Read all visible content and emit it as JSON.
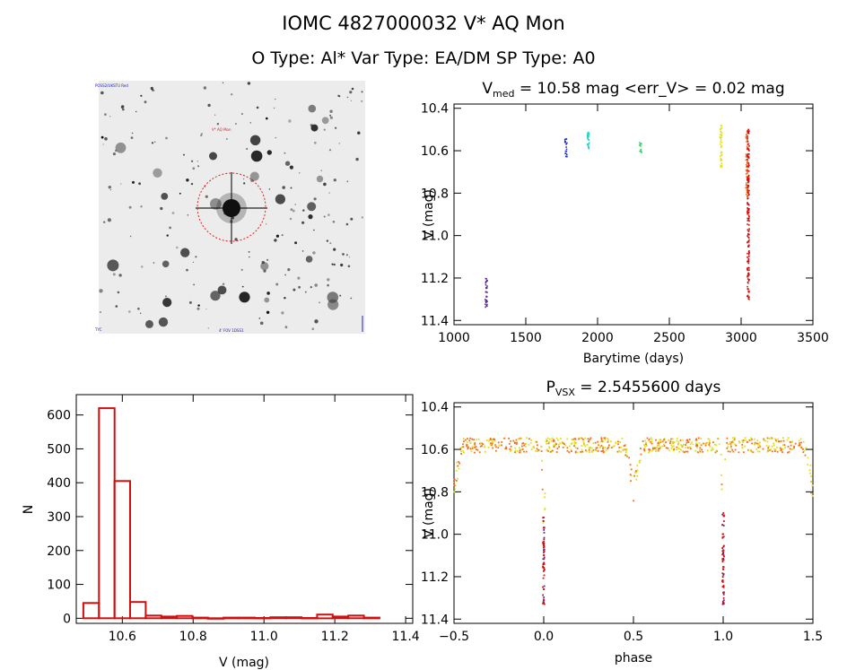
{
  "header": {
    "line1": "IOMC 4827000032    V* AQ Mon",
    "line2": "O Type: Al*  Var Type: EA/DM  SP Type: A0"
  },
  "finder": {
    "labels": {
      "top_left": "POSS2/UKSTU Red",
      "target": "V* AQ Mon",
      "bottom_left": "TYC",
      "bottom_center": "4' FOV 1DSS1"
    },
    "ring_color": "#e02020"
  },
  "chart_data": [
    {
      "id": "lightcurve",
      "type": "scatter",
      "title_parts": [
        "V",
        "med",
        " = 10.58 mag <err_V> = 0.02 mag"
      ],
      "xlabel": "Barytime (days)",
      "ylabel": "V (mag)",
      "xlim": [
        1000,
        3500
      ],
      "ylim": [
        11.42,
        10.38
      ],
      "xticks": [
        1000,
        1500,
        2000,
        2500,
        3000,
        3500
      ],
      "xtick_labels": [
        "1000",
        "1500",
        "2000",
        "2500",
        "3000",
        "3500"
      ],
      "yticks": [
        10.4,
        10.6,
        10.8,
        11.0,
        11.2,
        11.4
      ],
      "ytick_labels": [
        "10.4",
        "10.6",
        "10.8",
        "11.0",
        "11.2",
        "11.4"
      ],
      "grid": false,
      "clusters": [
        {
          "x": 1225,
          "y_range": [
            11.2,
            11.34
          ],
          "color": "#5a2a9a"
        },
        {
          "x": 1780,
          "y_range": [
            10.54,
            10.63
          ],
          "color": "#2030c0"
        },
        {
          "x": 1935,
          "y_range": [
            10.51,
            10.61
          ],
          "color": "#20d0c0"
        },
        {
          "x": 2300,
          "y_range": [
            10.56,
            10.61
          ],
          "color": "#30d060"
        },
        {
          "x": 2860,
          "y_range": [
            10.48,
            10.68
          ],
          "color": "#e0e020"
        },
        {
          "x": 3040,
          "y_range": [
            10.5,
            10.82
          ],
          "color": "#f07020"
        },
        {
          "x": 3050,
          "y_range": [
            10.5,
            11.31
          ],
          "color": "#d01010"
        }
      ]
    },
    {
      "id": "histogram",
      "type": "bar",
      "xlabel": "V (mag)",
      "ylabel": "N",
      "xlim": [
        10.47,
        11.42
      ],
      "ylim": [
        -15,
        660
      ],
      "xticks": [
        10.6,
        10.8,
        11.0,
        11.2,
        11.4
      ],
      "xtick_labels": [
        "10.6",
        "10.8",
        "11.0",
        "11.2",
        "11.4"
      ],
      "yticks": [
        0,
        100,
        200,
        300,
        400,
        500,
        600
      ],
      "ytick_labels": [
        "0",
        "100",
        "200",
        "300",
        "400",
        "500",
        "600"
      ],
      "bin_width": 0.044,
      "bin_start": 10.49,
      "values": [
        45,
        620,
        405,
        48,
        8,
        5,
        7,
        2,
        0,
        2,
        2,
        1,
        3,
        3,
        1,
        11,
        5,
        8,
        2
      ],
      "color": "#d01010"
    },
    {
      "id": "phased",
      "type": "scatter",
      "title_parts": [
        "P",
        "VSX",
        " = 2.5455600 days"
      ],
      "xlabel": "phase",
      "ylabel": "V (mag)",
      "xlim": [
        -0.5,
        1.5
      ],
      "ylim": [
        11.42,
        10.38
      ],
      "xticks": [
        -0.5,
        0.0,
        0.5,
        1.0,
        1.5
      ],
      "xtick_labels": [
        "−0.5",
        "0.0",
        "0.5",
        "1.0",
        "1.5"
      ],
      "yticks": [
        10.4,
        10.6,
        10.8,
        11.0,
        11.2,
        11.4
      ],
      "ytick_labels": [
        "10.4",
        "10.6",
        "10.8",
        "11.0",
        "11.2",
        "11.4"
      ],
      "grid": false,
      "period_days": 2.54556,
      "primary_eclipse": {
        "phase": 0.0,
        "depth_mag": 11.33,
        "base_mag": 10.58
      },
      "secondary_eclipse": {
        "phase": 0.5,
        "depth_mag": 10.83
      },
      "colors": [
        "#f07020",
        "#e0e020",
        "#d01010",
        "#5a2a9a",
        "#20d0c0"
      ]
    }
  ]
}
